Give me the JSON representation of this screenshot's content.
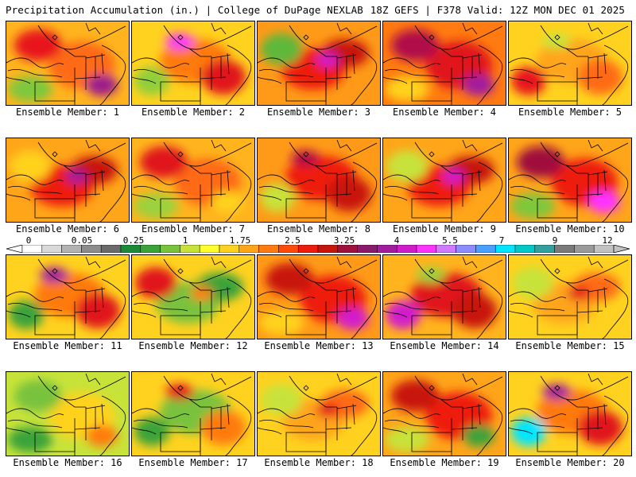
{
  "header": {
    "left": "Precipitation Accumulation (in.) | College of DuPage NEXLAB",
    "right": "18Z GEFS | F378 Valid: 12Z MON DEC 01 2025"
  },
  "colorbar": {
    "labels": [
      "0",
      "0.05",
      "0.25",
      "1",
      "1.75",
      "2.5",
      "3.25",
      "4",
      "5.5",
      "7",
      "9",
      "12"
    ],
    "colors": [
      "#ffffff",
      "#d9d9d9",
      "#b3b3b3",
      "#8c8c8c",
      "#6b6b6b",
      "#1d8a3a",
      "#3aa33a",
      "#79c23c",
      "#c7e33a",
      "#ffff2e",
      "#ffd21f",
      "#ffa51a",
      "#ff7a10",
      "#ff4a0a",
      "#ee1c0c",
      "#c8150c",
      "#a0103c",
      "#8a1a6c",
      "#a11c9e",
      "#d21ccc",
      "#ff33ff",
      "#cf7aff",
      "#8c8cff",
      "#4aa0ff",
      "#00e5ff",
      "#00c8c8",
      "#33a0a0",
      "#7a7a7a",
      "#9a9a9a",
      "#c2c2c2"
    ]
  },
  "members": [
    {
      "label": "Ensemble Member: 1",
      "base": "#ffb41e",
      "blobs": [
        "#ff6a14",
        "#e8141a",
        "#9b1d8c",
        "#7ec83c"
      ]
    },
    {
      "label": "Ensemble Member: 2",
      "base": "#ffd21f",
      "blobs": [
        "#ff7a10",
        "#e0151a",
        "#ff33ff",
        "#8fcf3a"
      ]
    },
    {
      "label": "Ensemble Member: 3",
      "base": "#ff9a18",
      "blobs": [
        "#ee1c0c",
        "#c8150c",
        "#d21ccc",
        "#5fb83a"
      ]
    },
    {
      "label": "Ensemble Member: 4",
      "base": "#ff7a10",
      "blobs": [
        "#e0151a",
        "#b0104a",
        "#a11c9e",
        "#ffd21f"
      ]
    },
    {
      "label": "Ensemble Member: 5",
      "base": "#ffd21f",
      "blobs": [
        "#ffa51a",
        "#ff6a14",
        "#c7e33a",
        "#e8141a"
      ]
    },
    {
      "label": "Ensemble Member: 6",
      "base": "#ffa51a",
      "blobs": [
        "#ee1c0c",
        "#c8150c",
        "#a11c9e",
        "#ffd21f"
      ]
    },
    {
      "label": "Ensemble Member: 7",
      "base": "#ffb41e",
      "blobs": [
        "#ff6a14",
        "#e0151a",
        "#ffd21f",
        "#9bd23c"
      ]
    },
    {
      "label": "Ensemble Member: 8",
      "base": "#ff9a18",
      "blobs": [
        "#ee1c0c",
        "#c8150c",
        "#b0104a",
        "#c7e33a"
      ]
    },
    {
      "label": "Ensemble Member: 9",
      "base": "#ffa51a",
      "blobs": [
        "#ee1c0c",
        "#c8150c",
        "#d21ccc",
        "#c7e33a"
      ]
    },
    {
      "label": "Ensemble Member: 10",
      "base": "#ffa51a",
      "blobs": [
        "#ee1c0c",
        "#a0103c",
        "#ff33ff",
        "#7ec83c"
      ]
    },
    {
      "label": "Ensemble Member: 11",
      "base": "#ffd21f",
      "blobs": [
        "#ff7a10",
        "#e0151a",
        "#a11c9e",
        "#3aa33a"
      ]
    },
    {
      "label": "Ensemble Member: 12",
      "base": "#ffd21f",
      "blobs": [
        "#79c23c",
        "#3aa33a",
        "#ff7a10",
        "#e0151a"
      ]
    },
    {
      "label": "Ensemble Member: 13",
      "base": "#ff9a18",
      "blobs": [
        "#ee1c0c",
        "#c8150c",
        "#d21ccc",
        "#ffd21f"
      ]
    },
    {
      "label": "Ensemble Member: 14",
      "base": "#ffb41e",
      "blobs": [
        "#e0151a",
        "#c8150c",
        "#9bd23c",
        "#d21ccc"
      ]
    },
    {
      "label": "Ensemble Member: 15",
      "base": "#ffd21f",
      "blobs": [
        "#ffa51a",
        "#ff6a14",
        "#e0151a",
        "#c7e33a"
      ]
    },
    {
      "label": "Ensemble Member: 16",
      "base": "#c7e33a",
      "blobs": [
        "#ffd21f",
        "#79c23c",
        "#ff7a10",
        "#3aa33a"
      ]
    },
    {
      "label": "Ensemble Member: 17",
      "base": "#ffd21f",
      "blobs": [
        "#79c23c",
        "#ff7a10",
        "#e0151a",
        "#3aa33a"
      ]
    },
    {
      "label": "Ensemble Member: 18",
      "base": "#ffd21f",
      "blobs": [
        "#ffa51a",
        "#ff6a14",
        "#e0151a",
        "#c7e33a"
      ]
    },
    {
      "label": "Ensemble Member: 19",
      "base": "#ffa51a",
      "blobs": [
        "#ee1c0c",
        "#c8150c",
        "#3aa33a",
        "#c7e33a"
      ]
    },
    {
      "label": "Ensemble Member: 20",
      "base": "#ffd21f",
      "blobs": [
        "#ff7a10",
        "#e0151a",
        "#a11c9e",
        "#00e5ff"
      ]
    }
  ]
}
